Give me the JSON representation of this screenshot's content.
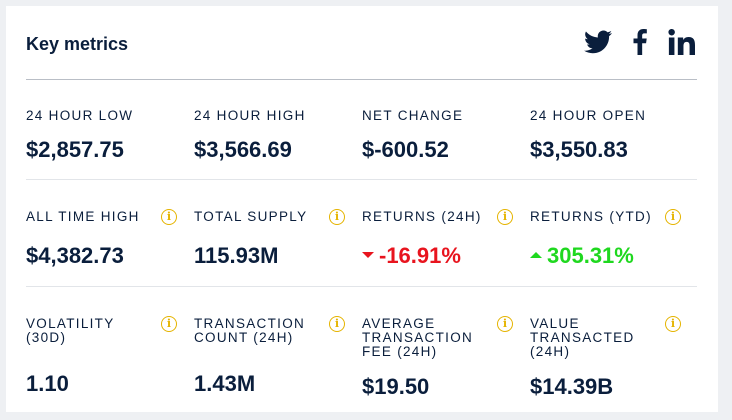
{
  "header": {
    "title": "Key metrics",
    "social": [
      "twitter-icon",
      "facebook-icon",
      "linkedin-icon"
    ]
  },
  "colors": {
    "text": "#0a1e3c",
    "negative": "#e8141e",
    "positive": "#1fd81f",
    "info": "#e5b400"
  },
  "metrics": {
    "low_24h": {
      "label": "24 HOUR LOW",
      "value": "$2,857.75"
    },
    "high_24h": {
      "label": "24 HOUR HIGH",
      "value": "$3,566.69"
    },
    "net_change": {
      "label": "NET CHANGE",
      "value": "$-600.52"
    },
    "open_24h": {
      "label": "24 HOUR OPEN",
      "value": "$3,550.83"
    },
    "all_time_high": {
      "label": "ALL TIME HIGH",
      "value": "$4,382.73",
      "info_icon": "i"
    },
    "total_supply": {
      "label": "TOTAL SUPPLY",
      "value": "115.93M",
      "info_icon": "i"
    },
    "returns_24h": {
      "label": "RETURNS (24H)",
      "value": "-16.91%",
      "direction": "down",
      "info_icon": "i"
    },
    "returns_ytd": {
      "label": "RETURNS (YTD)",
      "value": "305.31%",
      "direction": "up",
      "info_icon": "i"
    },
    "volatility": {
      "label": "VOLATILITY\n(30D)",
      "value": "1.10",
      "info_icon": "i"
    },
    "tx_count": {
      "label": "TRANSACTION\nCOUNT (24H)",
      "value": "1.43M",
      "info_icon": "i"
    },
    "avg_tx_fee": {
      "label": "AVERAGE\nTRANSACTION\nFEE (24H)",
      "value": "$19.50",
      "info_icon": "i"
    },
    "value_transacted": {
      "label": "VALUE\nTRANSACTED\n(24H)",
      "value": "$14.39B",
      "info_icon": "i"
    }
  }
}
